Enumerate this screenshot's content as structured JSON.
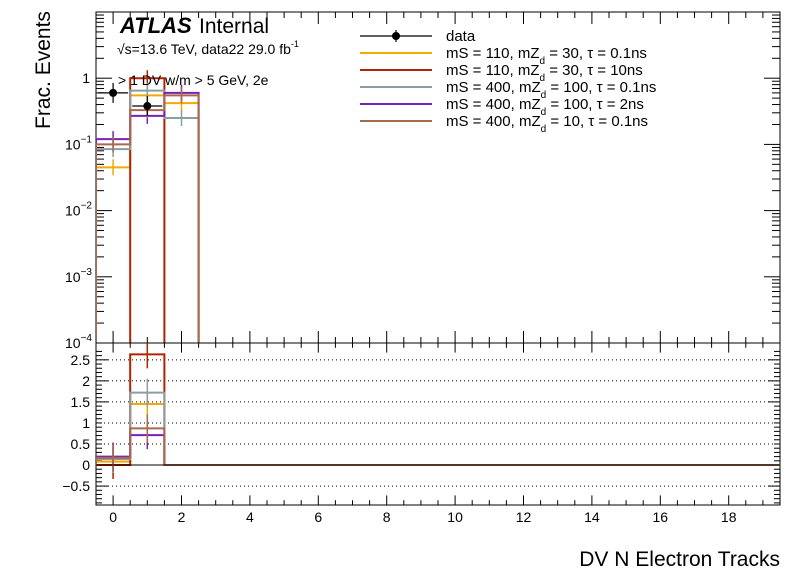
{
  "chart_data": [
    {
      "type": "line",
      "panel": "main",
      "ylabel": "Frac. Events",
      "yscale": "log",
      "ylim": [
        0.0001,
        10
      ],
      "xlim": [
        -0.5,
        19.5
      ],
      "yticks": [
        {
          "label": "10",
          "exp": "−4",
          "value": 0.0001
        },
        {
          "label": "10",
          "exp": "−3",
          "value": 0.001
        },
        {
          "label": "10",
          "exp": "−2",
          "value": 0.01
        },
        {
          "label": "10",
          "exp": "−1",
          "value": 0.1
        },
        {
          "label": "1",
          "exp": "",
          "value": 1
        }
      ],
      "atlas_label": "ATLAS",
      "atlas_status": "Internal",
      "energy_label_main": "√s=13.6 TeV, data22 29.0 fb",
      "energy_label_sup": "-1",
      "selection_label": "> 1 DV w/m > 5 GeV, 2e",
      "bins": [
        0,
        1,
        2
      ],
      "data": {
        "name": "data",
        "x": [
          0,
          1
        ],
        "y": [
          0.6,
          0.38
        ]
      },
      "series": [
        {
          "name": "mS = 110, mZd = 30, τ = 0.1ns",
          "legend_main": "mS = 110, mZ",
          "legend_sub": "d",
          "legend_tail": " = 30, τ = 0.1ns",
          "color": "#f2a900",
          "values": [
            0.045,
            0.55,
            0.42
          ]
        },
        {
          "name": "mS = 110, mZd = 30, τ = 10ns",
          "legend_main": "mS = 110, mZ",
          "legend_sub": "d",
          "legend_tail": " = 30, τ = 10ns",
          "color": "#b22200",
          "values": [
            1e-05,
            1.0,
            1e-05
          ]
        },
        {
          "name": "mS = 400, mZd = 100, τ = 0.1ns",
          "legend_main": "mS = 400, mZ",
          "legend_sub": "d",
          "legend_tail": " = 100, τ = 0.1ns",
          "color": "#8c9ca3",
          "values": [
            0.085,
            0.65,
            0.25
          ]
        },
        {
          "name": "mS = 400, mZd = 100, τ = 2ns",
          "legend_main": "mS = 400, mZ",
          "legend_sub": "d",
          "legend_tail": " = 100, τ = 2ns",
          "color": "#7a21b5",
          "values": [
            0.12,
            0.27,
            0.6
          ]
        },
        {
          "name": "mS = 400, mZd = 10, τ = 0.1ns",
          "legend_main": "mS = 400, mZ",
          "legend_sub": "d",
          "legend_tail": " = 10, τ = 0.1ns",
          "color": "#a86a4c",
          "values": [
            0.1,
            0.33,
            0.55
          ]
        }
      ]
    },
    {
      "type": "line",
      "panel": "ratio",
      "xlabel": "DV N Electron Tracks",
      "ylim": [
        -0.95,
        2.9
      ],
      "xlim": [
        -0.5,
        19.5
      ],
      "xticks": [
        0,
        2,
        4,
        6,
        8,
        10,
        12,
        14,
        16,
        18
      ],
      "yticks": [
        {
          "label": "−0.5",
          "value": -0.5
        },
        {
          "label": "0",
          "value": 0
        },
        {
          "label": "0.5",
          "value": 0.5
        },
        {
          "label": "1",
          "value": 1
        },
        {
          "label": "1.5",
          "value": 1.5
        },
        {
          "label": "2",
          "value": 2
        },
        {
          "label": "2.5",
          "value": 2.5
        }
      ],
      "grid_y": true,
      "series": [
        {
          "name": "mS = 110, mZd = 30, τ = 0.1ns",
          "color": "#f2a900",
          "values": [
            0.08,
            1.45,
            0
          ]
        },
        {
          "name": "mS = 110, mZd = 30, τ = 10ns",
          "color": "#b22200",
          "values": [
            0.0,
            2.63,
            0
          ]
        },
        {
          "name": "mS = 400, mZd = 100, τ = 0.1ns",
          "color": "#8c9ca3",
          "values": [
            0.14,
            1.72,
            0
          ]
        },
        {
          "name": "mS = 400, mZd = 100, τ = 2ns",
          "color": "#7a21b5",
          "values": [
            0.2,
            0.71,
            0
          ]
        },
        {
          "name": "mS = 400, mZd = 10, τ = 0.1ns",
          "color": "#a86a4c",
          "values": [
            0.17,
            0.87,
            0
          ]
        }
      ]
    }
  ]
}
